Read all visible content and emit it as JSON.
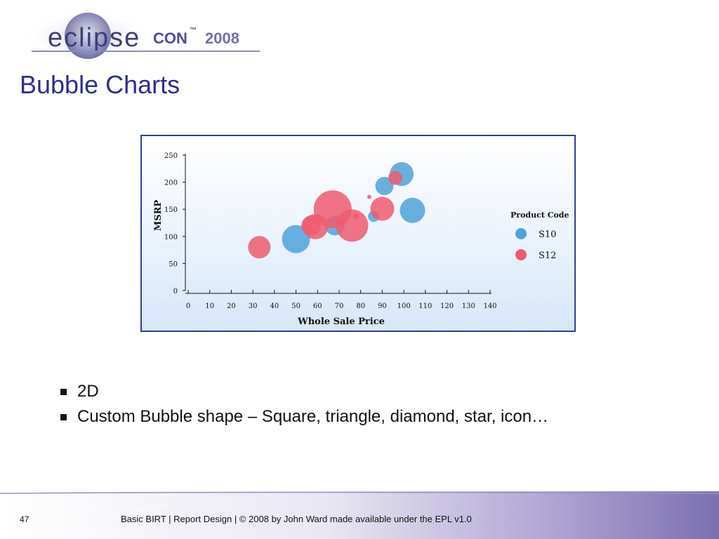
{
  "logo": {
    "text_main": "eclipse",
    "text_con": "CON",
    "text_tm": "™",
    "text_year": "2008"
  },
  "slide": {
    "title": "Bubble Charts"
  },
  "chart_data": {
    "type": "scatter",
    "subtype": "bubble",
    "xlabel": "Whole Sale Price",
    "ylabel": "MSRP",
    "xlim": [
      0,
      140
    ],
    "ylim": [
      0,
      250
    ],
    "xticks": [
      0,
      10,
      20,
      30,
      40,
      50,
      60,
      70,
      80,
      90,
      100,
      110,
      120,
      130,
      140
    ],
    "yticks": [
      0,
      50,
      100,
      150,
      200,
      250
    ],
    "grid": false,
    "legend": {
      "title": "Product Code",
      "position": "right"
    },
    "series": [
      {
        "name": "S10",
        "color": "#4da3dc",
        "points": [
          {
            "x": 50,
            "y": 95,
            "size": 20
          },
          {
            "x": 68,
            "y": 120,
            "size": 14
          },
          {
            "x": 86,
            "y": 137,
            "size": 8
          },
          {
            "x": 91,
            "y": 193,
            "size": 13
          },
          {
            "x": 99,
            "y": 215,
            "size": 17
          },
          {
            "x": 104,
            "y": 148,
            "size": 18
          }
        ]
      },
      {
        "name": "S12",
        "color": "#f05a6e",
        "points": [
          {
            "x": 33,
            "y": 80,
            "size": 16
          },
          {
            "x": 57,
            "y": 120,
            "size": 14
          },
          {
            "x": 59,
            "y": 118,
            "size": 18
          },
          {
            "x": 67,
            "y": 150,
            "size": 27
          },
          {
            "x": 76,
            "y": 120,
            "size": 23
          },
          {
            "x": 78,
            "y": 137,
            "size": 4
          },
          {
            "x": 84,
            "y": 173,
            "size": 3
          },
          {
            "x": 90,
            "y": 151,
            "size": 17
          },
          {
            "x": 96,
            "y": 208,
            "size": 10
          }
        ]
      }
    ]
  },
  "bullets": [
    "2D",
    "Custom Bubble shape – Square, triangle, diamond, star, icon…"
  ],
  "footer": {
    "page_number": "47",
    "text": "Basic BIRT  |  Report Design  |  © 2008 by John Ward made available under the EPL v1.0"
  },
  "colors": {
    "title": "#2d2f8a",
    "chart_border": "#2f3f9a",
    "footer_band": "#7b6fb0",
    "s10": "#4da3dc",
    "s12": "#f05a6e"
  }
}
